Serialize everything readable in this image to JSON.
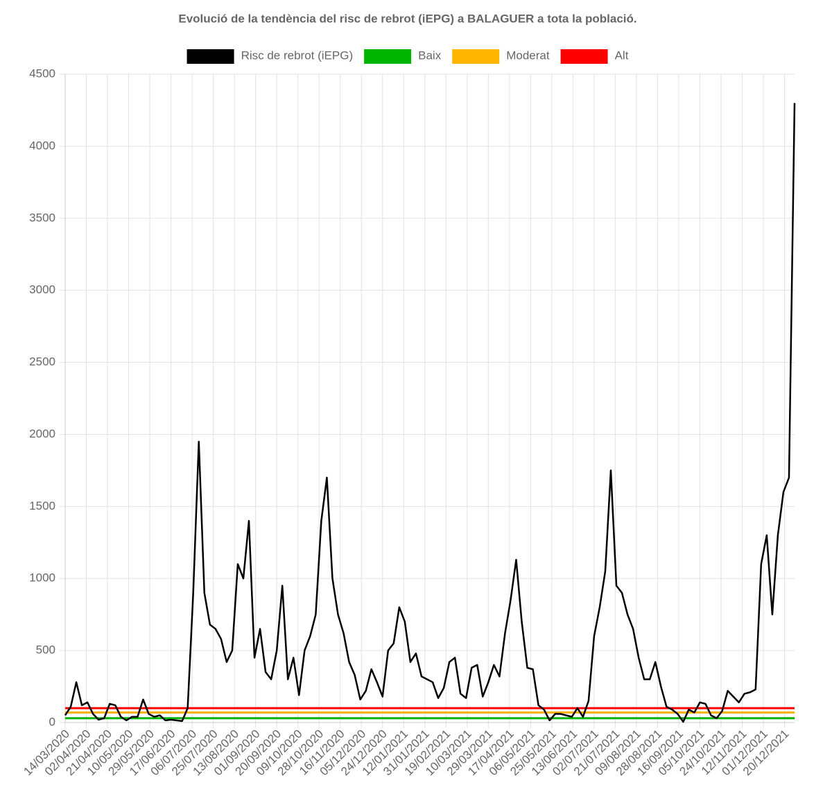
{
  "chart_data": {
    "type": "line",
    "title": "Evolució de la tendència del risc de rebrot (iEPG) a BALAGUER a tota la població.",
    "x": [
      "14/03/2020",
      "19/03/2020",
      "24/03/2020",
      "29/03/2020",
      "03/04/2020",
      "08/04/2020",
      "13/04/2020",
      "18/04/2020",
      "23/04/2020",
      "28/04/2020",
      "03/05/2020",
      "08/05/2020",
      "13/05/2020",
      "18/05/2020",
      "23/05/2020",
      "28/05/2020",
      "02/06/2020",
      "07/06/2020",
      "12/06/2020",
      "17/06/2020",
      "22/06/2020",
      "27/06/2020",
      "02/07/2020",
      "07/07/2020",
      "12/07/2020",
      "17/07/2020",
      "22/07/2020",
      "27/07/2020",
      "01/08/2020",
      "06/08/2020",
      "11/08/2020",
      "16/08/2020",
      "21/08/2020",
      "26/08/2020",
      "31/08/2020",
      "05/09/2020",
      "10/09/2020",
      "15/09/2020",
      "20/09/2020",
      "25/09/2020",
      "30/09/2020",
      "05/10/2020",
      "10/10/2020",
      "15/10/2020",
      "20/10/2020",
      "25/10/2020",
      "30/10/2020",
      "04/11/2020",
      "09/11/2020",
      "14/11/2020",
      "19/11/2020",
      "24/11/2020",
      "29/11/2020",
      "04/12/2020",
      "09/12/2020",
      "14/12/2020",
      "19/12/2020",
      "24/12/2020",
      "29/12/2020",
      "03/01/2021",
      "08/01/2021",
      "13/01/2021",
      "18/01/2021",
      "23/01/2021",
      "28/01/2021",
      "02/02/2021",
      "07/02/2021",
      "12/02/2021",
      "17/02/2021",
      "22/02/2021",
      "27/02/2021",
      "04/03/2021",
      "09/03/2021",
      "14/03/2021",
      "19/03/2021",
      "24/03/2021",
      "29/03/2021",
      "03/04/2021",
      "08/04/2021",
      "13/04/2021",
      "18/04/2021",
      "23/04/2021",
      "28/04/2021",
      "03/05/2021",
      "08/05/2021",
      "13/05/2021",
      "18/05/2021",
      "23/05/2021",
      "28/05/2021",
      "02/06/2021",
      "07/06/2021",
      "12/06/2021",
      "17/06/2021",
      "22/06/2021",
      "27/06/2021",
      "02/07/2021",
      "07/07/2021",
      "12/07/2021",
      "17/07/2021",
      "22/07/2021",
      "27/07/2021",
      "01/08/2021",
      "06/08/2021",
      "11/08/2021",
      "16/08/2021",
      "21/08/2021",
      "26/08/2021",
      "31/08/2021",
      "05/09/2021",
      "10/09/2021",
      "15/09/2021",
      "20/09/2021",
      "25/09/2021",
      "30/09/2021",
      "05/10/2021",
      "10/10/2021",
      "15/10/2021",
      "20/10/2021",
      "25/10/2021",
      "30/10/2021",
      "04/11/2021",
      "09/11/2021",
      "14/11/2021",
      "19/11/2021",
      "24/11/2021",
      "29/11/2021",
      "04/12/2021",
      "09/12/2021",
      "14/12/2021",
      "19/12/2021",
      "24/12/2021",
      "29/12/2021"
    ],
    "series": [
      {
        "name": "Risc de rebrot (iEPG)",
        "color": "#000000",
        "values": [
          50,
          110,
          280,
          120,
          140,
          60,
          20,
          30,
          130,
          120,
          40,
          15,
          40,
          40,
          160,
          60,
          40,
          50,
          15,
          20,
          15,
          10,
          100,
          900,
          1950,
          900,
          680,
          650,
          580,
          420,
          500,
          1100,
          1000,
          1400,
          450,
          650,
          350,
          300,
          500,
          950,
          300,
          450,
          190,
          500,
          600,
          750,
          1400,
          1700,
          1000,
          750,
          620,
          420,
          330,
          160,
          220,
          370,
          280,
          180,
          500,
          550,
          800,
          700,
          420,
          480,
          320,
          300,
          280,
          170,
          240,
          420,
          450,
          200,
          170,
          380,
          400,
          180,
          280,
          400,
          320,
          620,
          850,
          1130,
          700,
          380,
          370,
          120,
          90,
          15,
          60,
          60,
          50,
          40,
          100,
          40,
          150,
          600,
          800,
          1050,
          1750,
          950,
          900,
          750,
          650,
          450,
          300,
          300,
          420,
          250,
          110,
          90,
          60,
          5,
          90,
          70,
          140,
          130,
          50,
          30,
          80,
          220,
          180,
          140,
          200,
          210,
          230,
          1100,
          1300,
          750,
          1300,
          1600,
          1700,
          4300
        ]
      }
    ],
    "reference_lines": [
      {
        "name": "Baix",
        "color": "#00b400",
        "value": 30
      },
      {
        "name": "Moderat",
        "color": "#ffb400",
        "value": 70
      },
      {
        "name": "Alt",
        "color": "#ff0000",
        "value": 100
      }
    ],
    "xlim": [
      "14/03/2020",
      "29/12/2021"
    ],
    "xticks": [
      "14/03/2020",
      "02/04/2020",
      "21/04/2020",
      "10/05/2020",
      "29/05/2020",
      "17/06/2020",
      "06/07/2020",
      "25/07/2020",
      "13/08/2020",
      "01/09/2020",
      "20/09/2020",
      "09/10/2020",
      "28/10/2020",
      "16/11/2020",
      "05/12/2020",
      "24/12/2020",
      "12/01/2021",
      "31/01/2021",
      "19/02/2021",
      "10/03/2021",
      "29/03/2021",
      "17/04/2021",
      "06/05/2021",
      "25/05/2021",
      "13/06/2021",
      "02/07/2021",
      "21/07/2021",
      "09/08/2021",
      "28/08/2021",
      "16/09/2021",
      "05/10/2021",
      "24/10/2021",
      "12/11/2021",
      "01/12/2021",
      "20/12/2021"
    ],
    "ylim": [
      0,
      4500
    ],
    "yticks": [
      0,
      500,
      1000,
      1500,
      2000,
      2500,
      3000,
      3500,
      4000,
      4500
    ],
    "grid": true
  }
}
